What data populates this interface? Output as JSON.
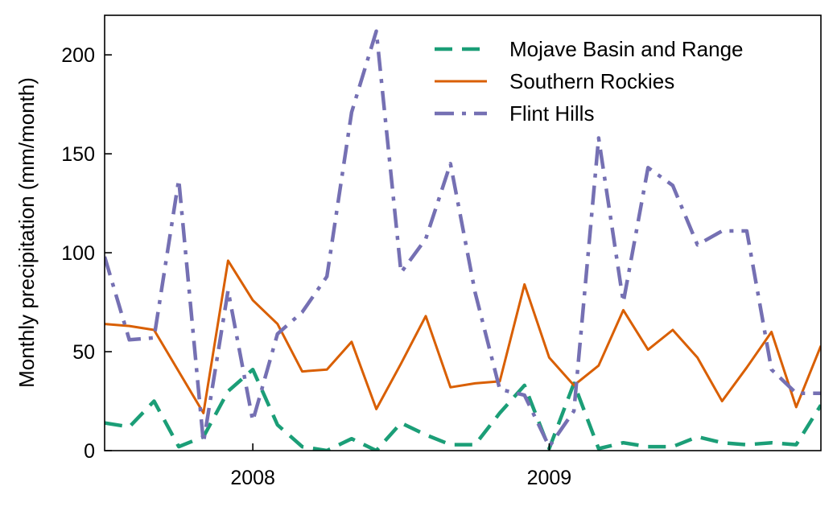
{
  "chart_data": {
    "type": "line",
    "xlabel": "",
    "ylabel": "Monthly precipitation (mm/month)",
    "x_ticks": [
      "2008",
      "2009"
    ],
    "y_ticks": [
      0,
      50,
      100,
      150,
      200
    ],
    "ylim": [
      0,
      220
    ],
    "xlim": [
      "2007-07-01",
      "2009-12-01"
    ],
    "grid": false,
    "legend_position": "top-right",
    "x": [
      "2007-07",
      "2007-08",
      "2007-09",
      "2007-10",
      "2007-11",
      "2007-12",
      "2008-01",
      "2008-02",
      "2008-03",
      "2008-04",
      "2008-05",
      "2008-06",
      "2008-07",
      "2008-08",
      "2008-09",
      "2008-10",
      "2008-11",
      "2008-12",
      "2009-01",
      "2009-02",
      "2009-03",
      "2009-04",
      "2009-05",
      "2009-06",
      "2009-07",
      "2009-08",
      "2009-09",
      "2009-10",
      "2009-11",
      "2009-12"
    ],
    "series": [
      {
        "name": "Mojave Basin and Range",
        "color": "#1b9e77",
        "dash": "dashed",
        "values": [
          14,
          12,
          25,
          2,
          7,
          30,
          41,
          13,
          2,
          0,
          6,
          0,
          14,
          8,
          3,
          3,
          19,
          33,
          1,
          34,
          1,
          4,
          2,
          2,
          7,
          4,
          3,
          4,
          3,
          23
        ]
      },
      {
        "name": "Southern Rockies",
        "color": "#d95f02",
        "dash": "solid",
        "values": [
          64,
          63,
          61,
          40,
          19,
          96,
          76,
          64,
          40,
          41,
          55,
          21,
          44,
          68,
          32,
          34,
          35,
          84,
          47,
          33,
          43,
          71,
          51,
          61,
          47,
          25,
          42,
          60,
          22,
          53
        ]
      },
      {
        "name": "Flint Hills",
        "color": "#7570b3",
        "dash": "dashdot",
        "values": [
          98,
          56,
          57,
          137,
          4,
          81,
          15,
          59,
          70,
          88,
          171,
          212,
          90,
          107,
          145,
          80,
          31,
          28,
          2,
          20,
          158,
          75,
          143,
          134,
          104,
          111,
          111,
          41,
          29,
          29
        ]
      }
    ]
  }
}
